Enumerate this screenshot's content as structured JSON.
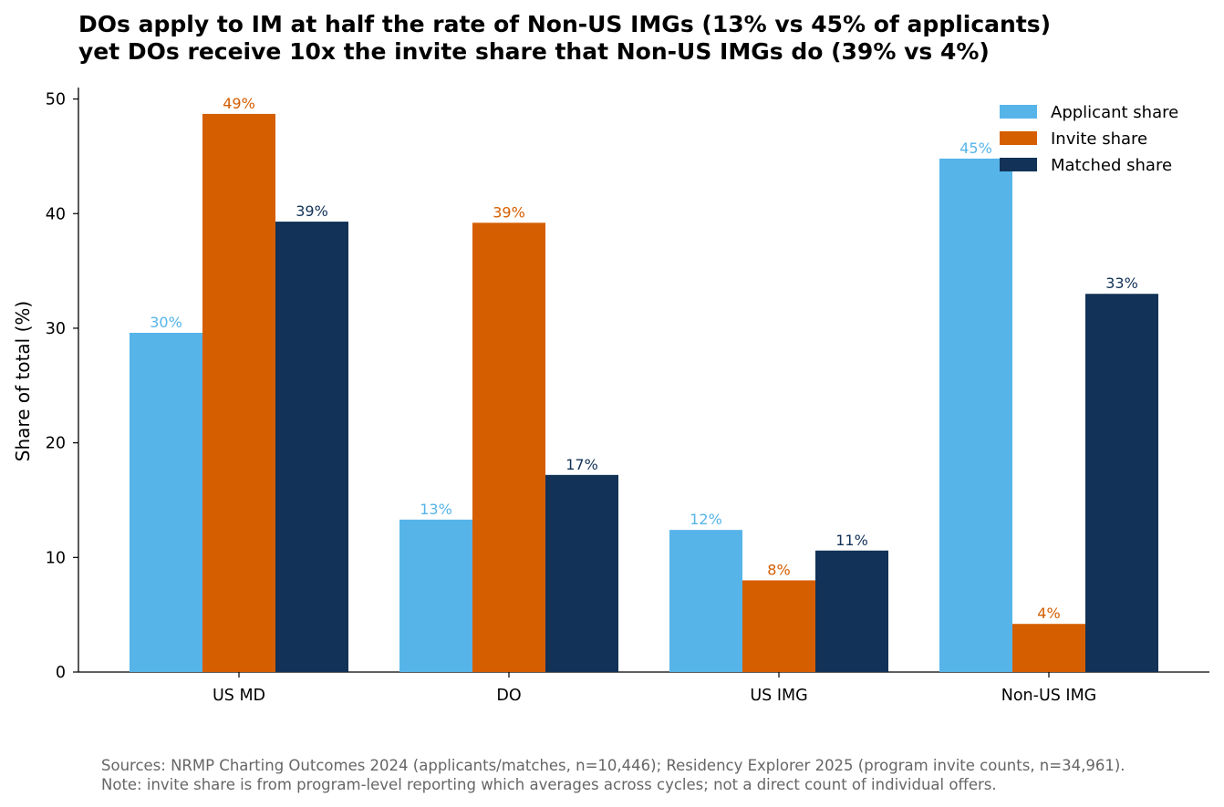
{
  "chart_data": {
    "type": "bar",
    "title_lines": [
      "DOs apply to IM at half the rate of Non-US IMGs (13% vs 45% of applicants)",
      "yet DOs receive 10x the invite share that Non-US IMGs do (39% vs 4%)"
    ],
    "xlabel": "",
    "ylabel": "Share of total (%)",
    "ylim": [
      0,
      51
    ],
    "yticks": [
      0,
      10,
      20,
      30,
      40,
      50
    ],
    "categories": [
      "US MD",
      "DO",
      "US IMG",
      "Non-US IMG"
    ],
    "series": [
      {
        "name": "Applicant share",
        "color": "#56B4E9",
        "values": [
          29.6,
          13.3,
          12.4,
          44.8
        ],
        "labels": [
          "30%",
          "13%",
          "12%",
          "45%"
        ]
      },
      {
        "name": "Invite share",
        "color": "#D55E00",
        "values": [
          48.7,
          39.2,
          8.0,
          4.2
        ],
        "labels": [
          "49%",
          "39%",
          "8%",
          "4%"
        ]
      },
      {
        "name": "Matched share",
        "color": "#123257",
        "values": [
          39.3,
          17.2,
          10.6,
          33.0
        ],
        "labels": [
          "39%",
          "17%",
          "11%",
          "33%"
        ]
      }
    ],
    "legend_position": "top-right",
    "grid": false,
    "footnote_lines": [
      "Sources: NRMP Charting Outcomes 2024 (applicants/matches, n=10,446); Residency Explorer 2025 (program invite counts, n=34,961).",
      "Note: invite share is from program-level reporting which averages across cycles; not a direct count of individual offers."
    ]
  }
}
